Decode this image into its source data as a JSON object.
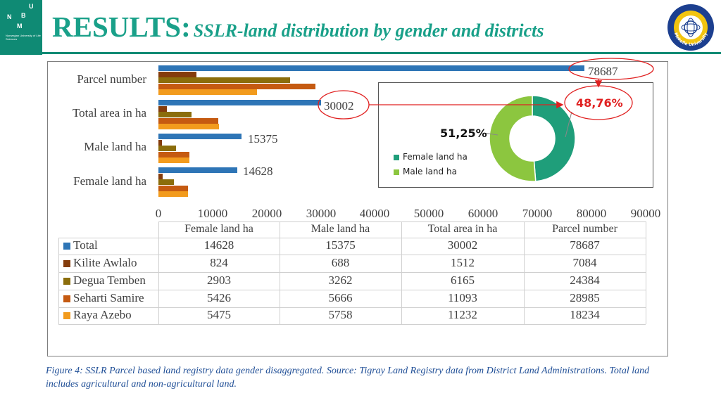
{
  "header": {
    "title_main": "RESULTS:",
    "title_sub": "SSLR-land distribution by gender and districts",
    "logo_left_letters": [
      "U",
      "N",
      "M",
      "B"
    ],
    "logo_left_text": "Norwegian University of Life Sciences",
    "logo_right_text": "Mekelle University"
  },
  "chart_data": [
    {
      "type": "bar",
      "orientation": "horizontal",
      "categories": [
        "Female land ha",
        "Male land ha",
        "Total area in ha",
        "Parcel number"
      ],
      "series": [
        {
          "name": "Total",
          "color": "#2e75b6",
          "values": [
            14628,
            15375,
            30002,
            78687
          ]
        },
        {
          "name": "Kilite Awlalo",
          "color": "#843c0c",
          "values": [
            824,
            688,
            1512,
            7084
          ]
        },
        {
          "name": "Degua Temben",
          "color": "#8b6d0b",
          "values": [
            2903,
            3262,
            6165,
            24384
          ]
        },
        {
          "name": "Seharti Samire",
          "color": "#c55a11",
          "values": [
            5426,
            5666,
            11093,
            28985
          ]
        },
        {
          "name": "Raya Azebo",
          "color": "#f29b1d",
          "values": [
            5475,
            5758,
            11232,
            18234
          ]
        }
      ],
      "xlim": [
        0,
        90000
      ],
      "x_ticks": [
        "0",
        "10000",
        "20000",
        "30000",
        "40000",
        "50000",
        "60000",
        "70000",
        "80000",
        "90000"
      ],
      "data_labels": {
        "series": "Total",
        "values": [
          "14628",
          "15375",
          "30002",
          "78687"
        ]
      },
      "data_table": {
        "columns": [
          "Female land ha",
          "Male land ha",
          "Total area in ha",
          "Parcel number"
        ],
        "rows": [
          {
            "name": "Total",
            "values": [
              "14628",
              "15375",
              "30002",
              "78687"
            ]
          },
          {
            "name": "Kilite Awlalo",
            "values": [
              "824",
              "688",
              "1512",
              "7084"
            ]
          },
          {
            "name": "Degua Temben",
            "values": [
              "2903",
              "3262",
              "6165",
              "24384"
            ]
          },
          {
            "name": "Seharti Samire",
            "values": [
              "5426",
              "5666",
              "11093",
              "28985"
            ]
          },
          {
            "name": "Raya Azebo",
            "values": [
              "5475",
              "5758",
              "11232",
              "18234"
            ]
          }
        ]
      }
    },
    {
      "type": "pie",
      "variant": "donut",
      "labels": [
        "Female land ha",
        "Male land ha"
      ],
      "values": [
        48.76,
        51.25
      ],
      "value_labels": [
        "48,76%",
        "51,25%"
      ],
      "colors": [
        "#1f9e7a",
        "#8cc63f"
      ],
      "legend_position": "left"
    }
  ],
  "annotations": {
    "callout_color": "#e02020",
    "highlighted_values": [
      "78687",
      "30002",
      "48,76%"
    ]
  },
  "caption": "Figure 4: SSLR Parcel based land registry data gender disaggregated. Source: Tigray Land Registry data from District Land Administrations. Total land includes agricultural and non-agricultural land."
}
